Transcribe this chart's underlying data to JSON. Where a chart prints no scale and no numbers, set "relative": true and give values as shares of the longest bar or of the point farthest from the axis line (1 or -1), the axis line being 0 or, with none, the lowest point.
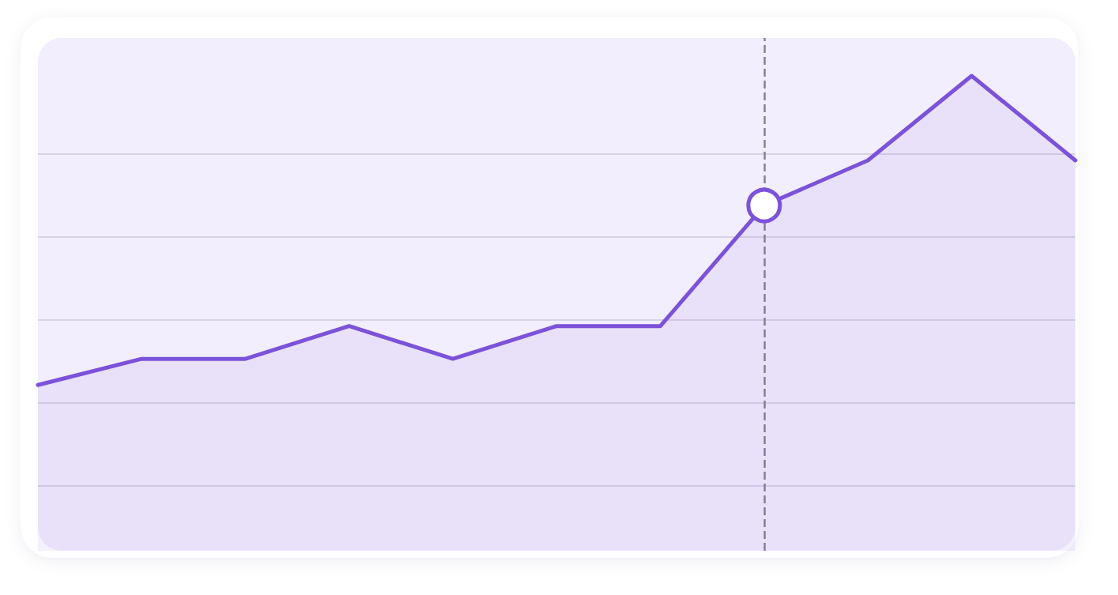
{
  "chart_data": {
    "type": "area",
    "relative": true,
    "categories": [
      null,
      null,
      null,
      null,
      null,
      null,
      null,
      null,
      null,
      null,
      null
    ],
    "series": [
      {
        "color": "#7b52d9",
        "values": [
          0.349,
          0.404,
          0.404,
          0.473,
          0.404,
          0.473,
          0.473,
          0.727,
          0.822,
          1,
          0.822
        ]
      }
    ],
    "grid": "y",
    "marker": "none",
    "line_style": "solid"
  }
}
